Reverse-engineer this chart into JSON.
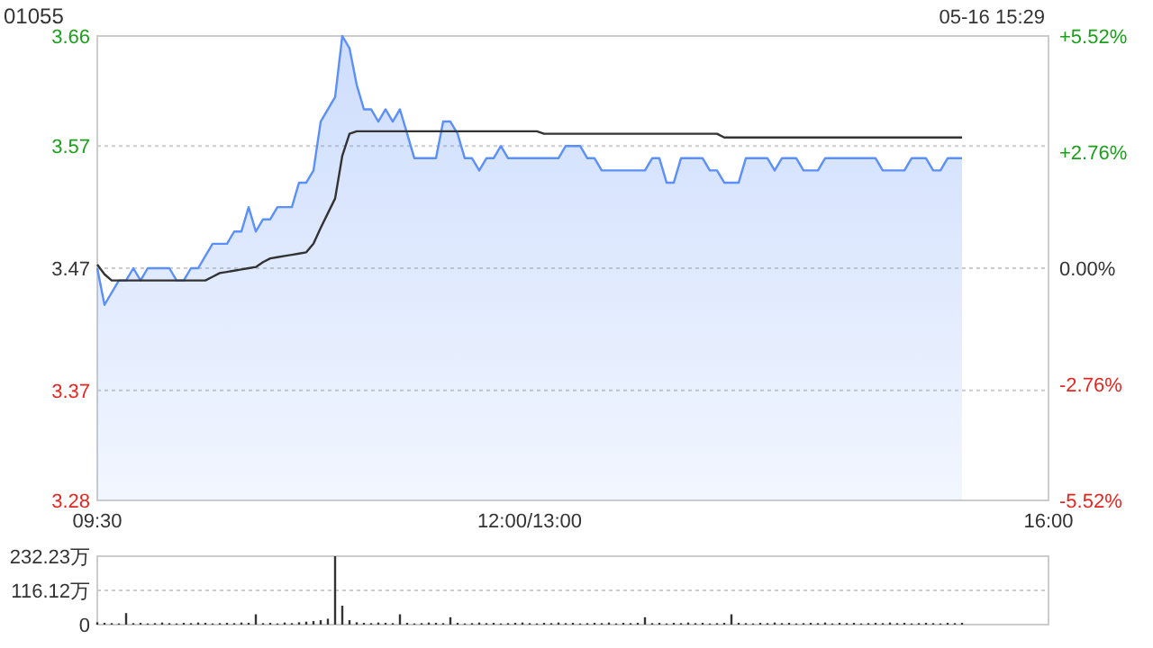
{
  "chart_data": [
    {
      "type": "line",
      "title": "01055",
      "annotations": [
        "05-16 15:29"
      ],
      "categories": [
        "09:30",
        null,
        null,
        null,
        null,
        null,
        null,
        null,
        null,
        null,
        null,
        null,
        null,
        null,
        null,
        null,
        null,
        null,
        null,
        null,
        null,
        null,
        null,
        null,
        null,
        null,
        null,
        null,
        null,
        null,
        null,
        null,
        null,
        null,
        null,
        null,
        null,
        null,
        null,
        null,
        null,
        null,
        null,
        null,
        null,
        null,
        null,
        null,
        null,
        null,
        null,
        null,
        null,
        null,
        null,
        null,
        null,
        null,
        null,
        null,
        "12:00/13:00",
        null,
        null,
        null,
        null,
        null,
        null,
        null,
        null,
        null,
        null,
        null,
        null,
        null,
        null,
        null,
        null,
        null,
        null,
        null,
        null,
        null,
        null,
        null,
        null,
        null,
        null,
        null,
        null,
        null,
        null,
        null,
        null,
        null,
        null,
        null,
        null,
        null,
        null,
        null,
        null,
        null,
        null,
        null,
        null,
        null,
        null,
        null,
        null,
        null,
        null,
        null,
        null,
        null,
        null,
        null,
        null,
        null,
        null,
        null,
        null,
        null,
        null,
        null,
        null,
        null,
        null,
        null,
        null,
        null,
        null,
        null,
        "16:00"
      ],
      "ylim": [
        3.28,
        3.66
      ],
      "yticks": [
        3.28,
        3.37,
        3.47,
        3.57,
        3.66
      ],
      "y2lim": [
        -5.52,
        5.52
      ],
      "y2ticks": [
        {
          "value": 5.52,
          "label": "+5.52%"
        },
        {
          "value": 2.76,
          "label": "+2.76%"
        },
        {
          "value": 0,
          "label": "0.00%"
        },
        {
          "value": -2.76,
          "label": "-2.76%"
        },
        {
          "value": -5.52,
          "label": "-5.52%"
        }
      ],
      "grid": "y",
      "series": [
        {
          "type": "area",
          "color": "#5b8ff9",
          "values": [
            3.47,
            3.44,
            3.45,
            3.46,
            3.46,
            3.47,
            3.46,
            3.47,
            3.47,
            3.47,
            3.47,
            3.46,
            3.46,
            3.47,
            3.47,
            3.48,
            3.49,
            3.49,
            3.49,
            3.5,
            3.5,
            3.52,
            3.5,
            3.51,
            3.51,
            3.52,
            3.52,
            3.52,
            3.54,
            3.54,
            3.55,
            3.59,
            3.6,
            3.61,
            3.66,
            3.65,
            3.62,
            3.6,
            3.6,
            3.59,
            3.6,
            3.59,
            3.6,
            3.58,
            3.56,
            3.56,
            3.56,
            3.56,
            3.59,
            3.59,
            3.58,
            3.56,
            3.56,
            3.55,
            3.56,
            3.56,
            3.57,
            3.56,
            3.56,
            3.56,
            3.56,
            3.56,
            3.56,
            3.56,
            3.56,
            3.57,
            3.57,
            3.57,
            3.56,
            3.56,
            3.55,
            3.55,
            3.55,
            3.55,
            3.55,
            3.55,
            3.55,
            3.56,
            3.56,
            3.54,
            3.54,
            3.56,
            3.56,
            3.56,
            3.56,
            3.55,
            3.55,
            3.54,
            3.54,
            3.54,
            3.56,
            3.56,
            3.56,
            3.56,
            3.55,
            3.56,
            3.56,
            3.56,
            3.55,
            3.55,
            3.55,
            3.56,
            3.56,
            3.56,
            3.56,
            3.56,
            3.56,
            3.56,
            3.56,
            3.55,
            3.55,
            3.55,
            3.55,
            3.56,
            3.56,
            3.56,
            3.55,
            3.55,
            3.56,
            3.56,
            3.56,
            null,
            null,
            null,
            null,
            null,
            null,
            null,
            null,
            null,
            null,
            null,
            null
          ]
        },
        {
          "color": "#333333",
          "values": [
            3.473,
            3.465,
            3.46,
            3.46,
            3.46,
            3.46,
            3.46,
            3.46,
            3.46,
            3.46,
            3.46,
            3.46,
            3.46,
            3.46,
            3.46,
            3.46,
            3.463,
            3.466,
            3.467,
            3.468,
            3.469,
            3.47,
            3.471,
            3.475,
            3.478,
            3.479,
            3.48,
            3.481,
            3.482,
            3.483,
            3.49,
            3.503,
            3.515,
            3.527,
            3.562,
            3.58,
            3.582,
            3.582,
            3.582,
            3.582,
            3.582,
            3.582,
            3.582,
            3.582,
            3.582,
            3.582,
            3.582,
            3.582,
            3.582,
            3.582,
            3.582,
            3.582,
            3.582,
            3.582,
            3.582,
            3.582,
            3.582,
            3.582,
            3.582,
            3.582,
            3.582,
            3.582,
            3.58,
            3.58,
            3.58,
            3.58,
            3.58,
            3.58,
            3.58,
            3.58,
            3.58,
            3.58,
            3.58,
            3.58,
            3.58,
            3.58,
            3.58,
            3.58,
            3.58,
            3.58,
            3.58,
            3.58,
            3.58,
            3.58,
            3.58,
            3.58,
            3.58,
            3.577,
            3.577,
            3.577,
            3.577,
            3.577,
            3.577,
            3.577,
            3.577,
            3.577,
            3.577,
            3.577,
            3.577,
            3.577,
            3.577,
            3.577,
            3.577,
            3.577,
            3.577,
            3.577,
            3.577,
            3.577,
            3.577,
            3.577,
            3.577,
            3.577,
            3.577,
            3.577,
            3.577,
            3.577,
            3.577,
            3.577,
            3.577,
            3.577,
            3.577,
            null,
            null,
            null,
            null,
            null,
            null,
            null,
            null,
            null,
            null,
            null,
            null
          ]
        }
      ]
    },
    {
      "type": "bar",
      "tick_labels": "y",
      "ylim": [
        0,
        232.23
      ],
      "yticks": [
        0,
        {
          "value": 116.12,
          "label": "116.12万"
        },
        {
          "value": 232.23,
          "label": "232.23万"
        }
      ],
      "grid": "y",
      "color": "#333333",
      "categories": [
        null,
        null,
        null,
        null,
        null,
        null,
        null,
        null,
        null,
        null,
        null,
        null,
        null,
        null,
        null,
        null,
        null,
        null,
        null,
        null,
        null,
        null,
        null,
        null,
        null,
        null,
        null,
        null,
        null,
        null,
        null,
        null,
        null,
        null,
        null,
        null,
        null,
        null,
        null,
        null,
        null,
        null,
        null,
        null,
        null,
        null,
        null,
        null,
        null,
        null,
        null,
        null,
        null,
        null,
        null,
        null,
        null,
        null,
        null,
        null,
        null,
        null,
        null,
        null,
        null,
        null,
        null,
        null,
        null,
        null,
        null,
        null,
        null,
        null,
        null,
        null,
        null,
        null,
        null,
        null,
        null,
        null,
        null,
        null,
        null,
        null,
        null,
        null,
        null,
        null,
        null,
        null,
        null,
        null,
        null,
        null,
        null,
        null,
        null,
        null,
        null,
        null,
        null,
        null,
        null,
        null,
        null,
        null,
        null,
        null,
        null,
        null,
        null,
        null,
        null,
        null,
        null,
        null,
        null,
        null,
        null,
        null,
        null,
        null,
        null,
        null,
        null,
        null,
        null,
        null,
        null,
        null,
        null
      ],
      "values": [
        8,
        6,
        5,
        4,
        39,
        5,
        6,
        4,
        5,
        7,
        5,
        4,
        6,
        5,
        7,
        6,
        4,
        5,
        6,
        5,
        7,
        6,
        35,
        5,
        6,
        4,
        7,
        5,
        8,
        10,
        12,
        15,
        20,
        232.23,
        64,
        15,
        8,
        6,
        5,
        7,
        6,
        5,
        35,
        6,
        4,
        5,
        7,
        6,
        5,
        25,
        6,
        4,
        5,
        7,
        5,
        6,
        4,
        5,
        6,
        7,
        5,
        4,
        6,
        5,
        7,
        5,
        6,
        4,
        5,
        6,
        5,
        7,
        4,
        6,
        5,
        6,
        25,
        5,
        6,
        4,
        6,
        5,
        7,
        5,
        6,
        4,
        5,
        6,
        35,
        6,
        5,
        4,
        6,
        5,
        7,
        5,
        6,
        4,
        5,
        6,
        5,
        7,
        4,
        6,
        5,
        6,
        4,
        5,
        6,
        5,
        7,
        5,
        6,
        4,
        5,
        6,
        5,
        4,
        6,
        5,
        6,
        null,
        null,
        null,
        null,
        null,
        null,
        null,
        null,
        null,
        null,
        null,
        null
      ]
    }
  ]
}
